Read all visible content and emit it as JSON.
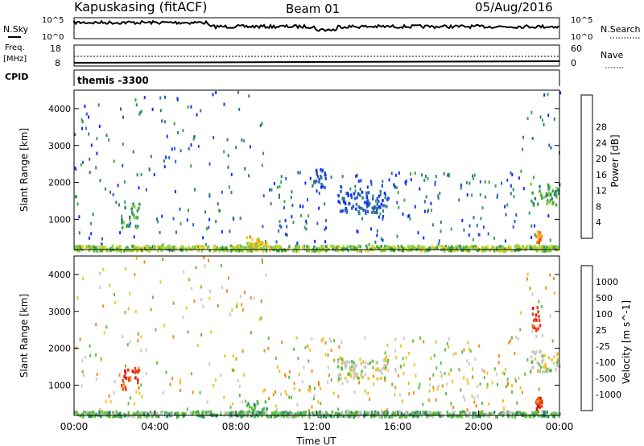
{
  "header": {
    "station": "Kapuskasing (fitACF)",
    "beam": "Beam 01",
    "date": "05/Aug/2016"
  },
  "top_panels": {
    "noise": {
      "left_label": "N.Sky",
      "right_label": "N.Search",
      "left_ticks": [
        "10^5",
        "10^0"
      ],
      "right_ticks": [
        "10^5",
        "10^0"
      ]
    },
    "freq": {
      "left_label_1": "Freq.",
      "left_label_2": "[MHz]",
      "left_ticks": [
        "18",
        "8"
      ],
      "right_label": "Nave",
      "right_ticks": [
        "60",
        "0"
      ]
    },
    "cpid": {
      "label": "CPID",
      "value": "themis -3300"
    }
  },
  "chart_data": [
    {
      "type": "heatmap",
      "name": "power",
      "xlabel": "",
      "ylabel": "Slant Range [km]",
      "xlim": [
        0,
        24
      ],
      "ylim": [
        180,
        4500
      ],
      "yticks": [
        "1000",
        "2000",
        "3000",
        "4000"
      ],
      "colorbar": {
        "label": "Power [dB]",
        "ticks": [
          "4",
          "8",
          "12",
          "16",
          "20",
          "24",
          "28"
        ],
        "colors": [
          "#0a2cff",
          "#2c5cc8",
          "#2e7f7c",
          "#3aa24a",
          "#8fd23c",
          "#f0d020",
          "#f08a1a",
          "#f04010",
          "#e80000"
        ]
      },
      "features": [
        {
          "x0": 0.0,
          "x1": 24.0,
          "y0": 180,
          "y1": 320,
          "level": 4
        },
        {
          "x0": 2.3,
          "x1": 3.2,
          "y0": 800,
          "y1": 1500,
          "level": 3
        },
        {
          "x0": 8.5,
          "x1": 9.5,
          "y0": 250,
          "y1": 600,
          "level": 5
        },
        {
          "x0": 11.7,
          "x1": 12.4,
          "y0": 1900,
          "y1": 2400,
          "level": 1
        },
        {
          "x0": 13.0,
          "x1": 15.5,
          "y0": 1200,
          "y1": 1800,
          "level": 1
        },
        {
          "x0": 22.5,
          "x1": 24.0,
          "y0": 1400,
          "y1": 2000,
          "level": 3
        },
        {
          "x0": 22.8,
          "x1": 23.1,
          "y0": 400,
          "y1": 700,
          "level": 6
        }
      ]
    },
    {
      "type": "heatmap",
      "name": "velocity",
      "xlabel": "Time UT",
      "ylabel": "Slant Range [km]",
      "xlim": [
        0,
        24
      ],
      "ylim": [
        180,
        4500
      ],
      "xticks": [
        "00:00",
        "04:00",
        "08:00",
        "12:00",
        "16:00",
        "20:00",
        "00:00"
      ],
      "yticks": [
        "1000",
        "2000",
        "3000",
        "4000"
      ],
      "colorbar": {
        "label": "Velocity [m s^-1]",
        "ticks": [
          "1000",
          "500",
          "100",
          "25",
          "-25",
          "-100",
          "-500",
          "-1000"
        ],
        "colors": [
          "#1030c0",
          "#2060a0",
          "#2e8a6a",
          "#5cc040",
          "#c8c8c8",
          "#f0c020",
          "#f08a1a",
          "#f04010",
          "#e80000"
        ]
      },
      "features": [
        {
          "x0": 0.0,
          "x1": 24.0,
          "y0": 180,
          "y1": 320,
          "level": 3
        },
        {
          "x0": 2.3,
          "x1": 3.2,
          "y0": 900,
          "y1": 1500,
          "level": 7
        },
        {
          "x0": 8.5,
          "x1": 9.5,
          "y0": 250,
          "y1": 600,
          "level": 3
        },
        {
          "x0": 13.0,
          "x1": 15.5,
          "y0": 1200,
          "y1": 1800,
          "level": 4
        },
        {
          "x0": 22.5,
          "x1": 24.0,
          "y0": 1400,
          "y1": 2000,
          "level": 4
        },
        {
          "x0": 22.6,
          "x1": 23.0,
          "y0": 2500,
          "y1": 3200,
          "level": 7
        },
        {
          "x0": 22.8,
          "x1": 23.1,
          "y0": 400,
          "y1": 700,
          "level": 7
        }
      ]
    }
  ]
}
